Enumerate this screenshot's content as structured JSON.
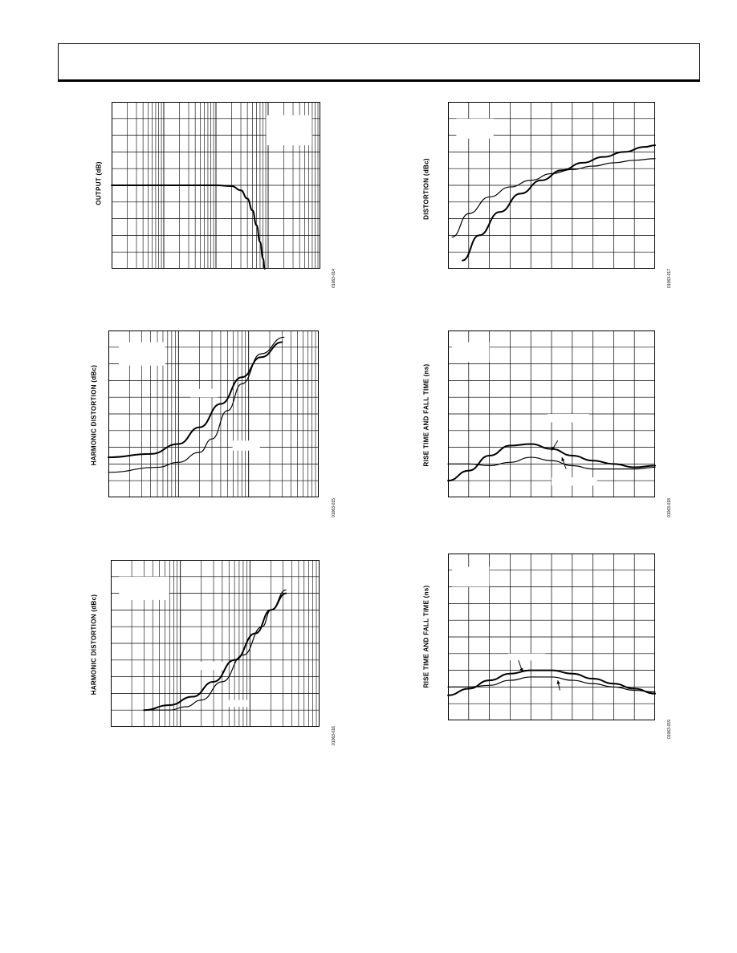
{
  "page": {
    "header": ""
  },
  "chart_data": [
    {
      "id": "c1",
      "type": "line",
      "xscale": "log",
      "xlim": [
        1,
        10000
      ],
      "ylim": [
        0,
        10
      ],
      "ylabel": "OUTPUT (dB)",
      "fig_id": "01063-014",
      "xticks_count": 10,
      "series": [
        {
          "name": "",
          "weight": "thick",
          "points": [
            [
              1,
              5
            ],
            [
              100,
              5
            ],
            [
              200,
              4.95
            ],
            [
              300,
              4.7
            ],
            [
              400,
              4.2
            ],
            [
              500,
              3.5
            ],
            [
              600,
              2.6
            ],
            [
              700,
              1.6
            ],
            [
              800,
              0.6
            ],
            [
              860,
              0
            ]
          ]
        }
      ],
      "label_boxes": [
        {
          "x": 0.74,
          "y": 0.08,
          "w": 0.22,
          "h": 0.18
        }
      ]
    },
    {
      "id": "c2",
      "type": "line",
      "xscale": "lin",
      "xlim": [
        0,
        10
      ],
      "ylim": [
        0,
        10
      ],
      "ylabel": "DISTORTION (dBc)",
      "fig_id": "01063-017",
      "series": [
        {
          "name": "",
          "weight": "thin",
          "points": [
            [
              0.2,
              1.9
            ],
            [
              1,
              3.3
            ],
            [
              2,
              4.3
            ],
            [
              3,
              4.9
            ],
            [
              4,
              5.3
            ],
            [
              5,
              5.7
            ],
            [
              6,
              5.95
            ],
            [
              7,
              6.15
            ],
            [
              8,
              6.35
            ],
            [
              9,
              6.5
            ],
            [
              10,
              6.6
            ]
          ]
        },
        {
          "name": "",
          "weight": "thick",
          "points": [
            [
              0.7,
              0.5
            ],
            [
              1.5,
              2
            ],
            [
              2.5,
              3.4
            ],
            [
              3.5,
              4.5
            ],
            [
              4.5,
              5.3
            ],
            [
              5.5,
              5.9
            ],
            [
              6.5,
              6.35
            ],
            [
              7.5,
              6.7
            ],
            [
              8.5,
              7
            ],
            [
              9.5,
              7.3
            ],
            [
              10,
              7.4
            ]
          ]
        }
      ],
      "label_boxes": [
        {
          "x": 0.04,
          "y": 0.1,
          "w": 0.18,
          "h": 0.12
        }
      ]
    },
    {
      "id": "c3",
      "type": "line",
      "xscale": "log",
      "xlim": [
        0.1,
        100
      ],
      "ylim": [
        0,
        10
      ],
      "ylabel": "HARMONIC DISTORTION (dBc)",
      "fig_id": "01063-015",
      "series": [
        {
          "name": "",
          "weight": "thick",
          "points": [
            [
              0.1,
              2.4
            ],
            [
              0.4,
              2.6
            ],
            [
              1,
              3.2
            ],
            [
              2,
              4.2
            ],
            [
              4,
              5.6
            ],
            [
              8,
              7.2
            ],
            [
              15,
              8.4
            ],
            [
              30,
              9.3
            ]
          ]
        },
        {
          "name": "",
          "weight": "thin",
          "points": [
            [
              0.1,
              1.5
            ],
            [
              0.5,
              1.8
            ],
            [
              1,
              2.1
            ],
            [
              2,
              2.7
            ],
            [
              3,
              3.5
            ],
            [
              5,
              5.2
            ],
            [
              8,
              6.8
            ],
            [
              15,
              8.6
            ],
            [
              32,
              9.6
            ]
          ]
        }
      ],
      "label_boxes": [
        {
          "x": 0.05,
          "y": 0.07,
          "w": 0.22,
          "h": 0.14
        },
        {
          "x": 0.39,
          "y": 0.35,
          "w": 0.13,
          "h": 0.05
        },
        {
          "x": 0.59,
          "y": 0.66,
          "w": 0.13,
          "h": 0.06
        }
      ]
    },
    {
      "id": "c4",
      "type": "line",
      "xscale": "lin",
      "xlim": [
        0,
        10
      ],
      "ylim": [
        0,
        10
      ],
      "ylabel": "RISE TIME AND FALL TIME (ns)",
      "fig_id": "01063-018",
      "series": [
        {
          "name": "",
          "weight": "thick",
          "points": [
            [
              0,
              1
            ],
            [
              1,
              1.6
            ],
            [
              2,
              2.5
            ],
            [
              3,
              3.1
            ],
            [
              4,
              3.2
            ],
            [
              5,
              2.9
            ],
            [
              6,
              2.5
            ],
            [
              7,
              2.2
            ],
            [
              8,
              2
            ],
            [
              9,
              1.8
            ],
            [
              10,
              1.9
            ]
          ]
        },
        {
          "name": "",
          "weight": "thin",
          "points": [
            [
              0,
              2
            ],
            [
              1,
              2
            ],
            [
              2,
              1.9
            ],
            [
              3,
              2.1
            ],
            [
              4,
              2.4
            ],
            [
              5,
              2.2
            ],
            [
              6,
              1.9
            ],
            [
              7,
              1.7
            ],
            [
              8,
              1.7
            ],
            [
              9,
              1.7
            ],
            [
              10,
              1.8
            ]
          ]
        }
      ],
      "label_boxes": [
        {
          "x": 0.02,
          "y": 0.07,
          "w": 0.18,
          "h": 0.12
        },
        {
          "x": 0.48,
          "y": 0.5,
          "w": 0.2,
          "h": 0.05
        },
        {
          "x": 0.5,
          "y": 0.88,
          "w": 0.22,
          "h": 0.05
        }
      ],
      "arrows": [
        {
          "x1": 0.53,
          "y1": 0.66,
          "x2": 0.5,
          "y2": 0.72
        },
        {
          "x1": 0.57,
          "y1": 0.83,
          "x2": 0.55,
          "y2": 0.76
        }
      ]
    },
    {
      "id": "c5",
      "type": "line",
      "xscale": "log",
      "xlim": [
        0.1,
        100
      ],
      "ylim": [
        0,
        10
      ],
      "ylabel": "HARMONIC DISTORTION (dBc)",
      "fig_id": "01063-016",
      "series": [
        {
          "name": "",
          "weight": "thick",
          "points": [
            [
              0.3,
              1
            ],
            [
              0.7,
              1.3
            ],
            [
              1.5,
              1.8
            ],
            [
              3,
              2.7
            ],
            [
              6,
              4
            ],
            [
              12,
              5.6
            ],
            [
              20,
              7
            ],
            [
              33,
              8
            ]
          ]
        },
        {
          "name": "",
          "weight": "thin",
          "points": [
            [
              0.3,
              1
            ],
            [
              0.7,
              1
            ],
            [
              1.2,
              1.2
            ],
            [
              2,
              1.6
            ],
            [
              4,
              2.7
            ],
            [
              8,
              4.3
            ],
            [
              15,
              6
            ],
            [
              20,
              7
            ],
            [
              33,
              8.2
            ]
          ]
        }
      ],
      "label_boxes": [
        {
          "x": 0.04,
          "y": 0.1,
          "w": 0.24,
          "h": 0.14
        },
        {
          "x": 0.41,
          "y": 0.61,
          "w": 0.14,
          "h": 0.05
        },
        {
          "x": 0.54,
          "y": 0.84,
          "w": 0.12,
          "h": 0.04
        }
      ]
    },
    {
      "id": "c6",
      "type": "line",
      "xscale": "lin",
      "xlim": [
        0,
        10
      ],
      "ylim": [
        0,
        10
      ],
      "ylabel": "RISE TIME AND FALL TIME (ns)",
      "fig_id": "01063-019",
      "series": [
        {
          "name": "",
          "weight": "thick",
          "points": [
            [
              0,
              1.5
            ],
            [
              1,
              1.9
            ],
            [
              2,
              2.4
            ],
            [
              3,
              2.8
            ],
            [
              4,
              3.0
            ],
            [
              5,
              3.0
            ],
            [
              6,
              2.8
            ],
            [
              7,
              2.5
            ],
            [
              8,
              2.2
            ],
            [
              9,
              1.9
            ],
            [
              10,
              1.6
            ]
          ]
        },
        {
          "name": "",
          "weight": "thin",
          "points": [
            [
              0,
              2
            ],
            [
              1,
              2
            ],
            [
              2,
              2.1
            ],
            [
              3,
              2.4
            ],
            [
              4,
              2.6
            ],
            [
              5,
              2.6
            ],
            [
              6,
              2.4
            ],
            [
              7,
              2.2
            ],
            [
              8,
              2
            ],
            [
              9,
              1.8
            ],
            [
              10,
              1.7
            ]
          ]
        }
      ],
      "label_boxes": [
        {
          "x": 0.02,
          "y": 0.08,
          "w": 0.18,
          "h": 0.12
        },
        {
          "x": 0.29,
          "y": 0.6,
          "w": 0.18,
          "h": 0.04
        }
      ],
      "arrows": [
        {
          "x1": 0.34,
          "y1": 0.64,
          "x2": 0.36,
          "y2": 0.71
        },
        {
          "x1": 0.54,
          "y1": 0.82,
          "x2": 0.53,
          "y2": 0.76
        }
      ]
    }
  ]
}
